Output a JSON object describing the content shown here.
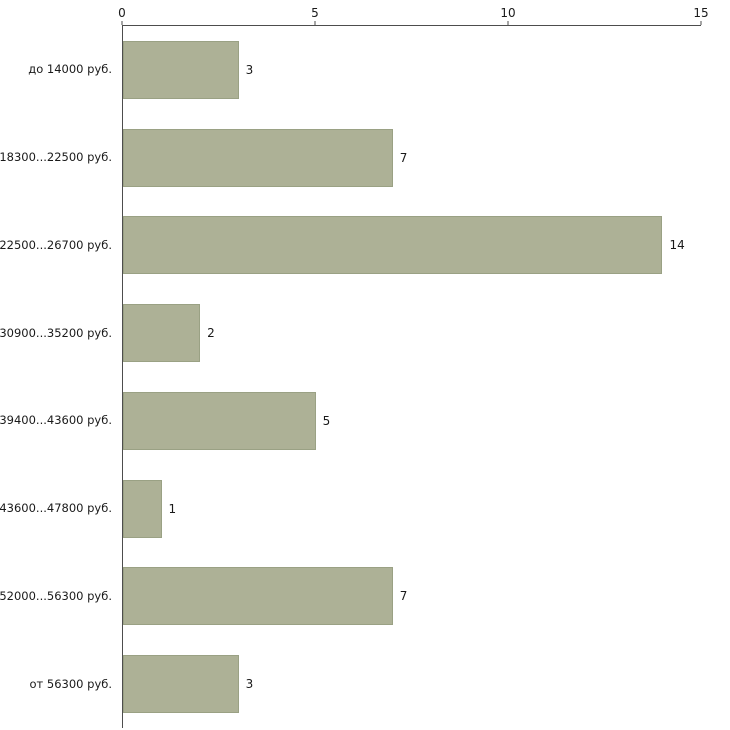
{
  "chart_data": {
    "type": "bar",
    "orientation": "horizontal",
    "title": "",
    "xlabel": "",
    "ylabel": "",
    "categories": [
      "до 14000 руб.",
      "18300...22500 руб.",
      "22500...26700 руб.",
      "30900...35200 руб.",
      "39400...43600 руб.",
      "43600...47800 руб.",
      "52000...56300 руб.",
      "от 56300 руб."
    ],
    "values": [
      3,
      7,
      14,
      2,
      5,
      1,
      7,
      3
    ],
    "xlim": [
      0,
      15
    ],
    "x_ticks": [
      0,
      5,
      10,
      15
    ],
    "grid": false,
    "legend": "none",
    "colors": {
      "bar_fill": "#adb196",
      "bar_border": "#9aa184",
      "axis": "#4d4d4d",
      "text": "#1a1a1a",
      "background": "#ffffff"
    }
  }
}
